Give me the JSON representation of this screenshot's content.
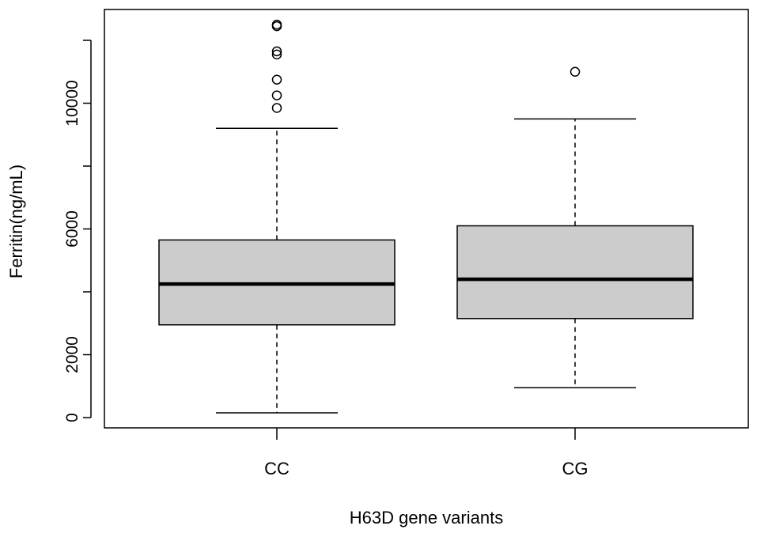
{
  "chart_data": {
    "type": "boxplot",
    "title": "",
    "xlabel": "H63D gene variants",
    "ylabel": "Ferritin(ng/mL)",
    "ylim": [
      -300,
      12900
    ],
    "yticks": [
      0,
      2000,
      6000,
      10000
    ],
    "yticks_unlabeled": [
      4000,
      8000,
      12000
    ],
    "grid": false,
    "legend": "none",
    "box_fill": "#cccccc",
    "categories": [
      "CC",
      "CG"
    ],
    "boxes": [
      {
        "name": "CC",
        "whisker_low": 150,
        "q1": 2950,
        "median": 4250,
        "q3": 5650,
        "whisker_high": 9200,
        "outliers": [
          9850,
          10250,
          10750,
          11550,
          11650,
          12450,
          12500
        ]
      },
      {
        "name": "CG",
        "whisker_low": 950,
        "q1": 3150,
        "median": 4400,
        "q3": 6100,
        "whisker_high": 9500,
        "outliers": [
          11000
        ]
      }
    ]
  }
}
